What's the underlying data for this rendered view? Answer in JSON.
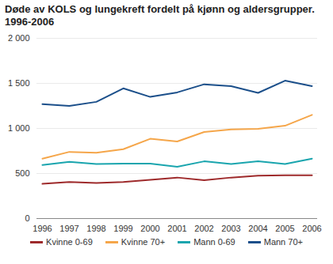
{
  "chart_data": {
    "type": "line",
    "title": "Døde av KOLS og lungekreft fordelt på kjønn og aldersgrupper. 1996-2006",
    "categories": [
      "1996",
      "1997",
      "1998",
      "1999",
      "2000",
      "2001",
      "2002",
      "2003",
      "2004",
      "2005",
      "2006"
    ],
    "series": [
      {
        "name": "Kvinne 0-69",
        "color": "#9e2a2b",
        "values": [
          385,
          405,
          395,
          405,
          430,
          455,
          425,
          455,
          475,
          480,
          480
        ]
      },
      {
        "name": "Kvinne 70+",
        "color": "#f5a64a",
        "values": [
          665,
          740,
          730,
          770,
          885,
          855,
          960,
          990,
          995,
          1030,
          1150
        ]
      },
      {
        "name": "Mann 0-69",
        "color": "#1aa5ae",
        "values": [
          595,
          630,
          605,
          610,
          610,
          575,
          635,
          605,
          635,
          605,
          665
        ]
      },
      {
        "name": "Mann 70+",
        "color": "#1b4f8a",
        "values": [
          1270,
          1250,
          1295,
          1445,
          1350,
          1400,
          1490,
          1470,
          1395,
          1530,
          1470
        ]
      }
    ],
    "ylim": [
      0,
      2000
    ],
    "yticks": [
      0,
      500,
      {
        "value": 1000,
        "label": "1 000"
      },
      {
        "value": 1500,
        "label": "1 500"
      },
      {
        "value": 2000,
        "label": "2 000"
      }
    ],
    "grid": true,
    "legend": "bottom"
  }
}
